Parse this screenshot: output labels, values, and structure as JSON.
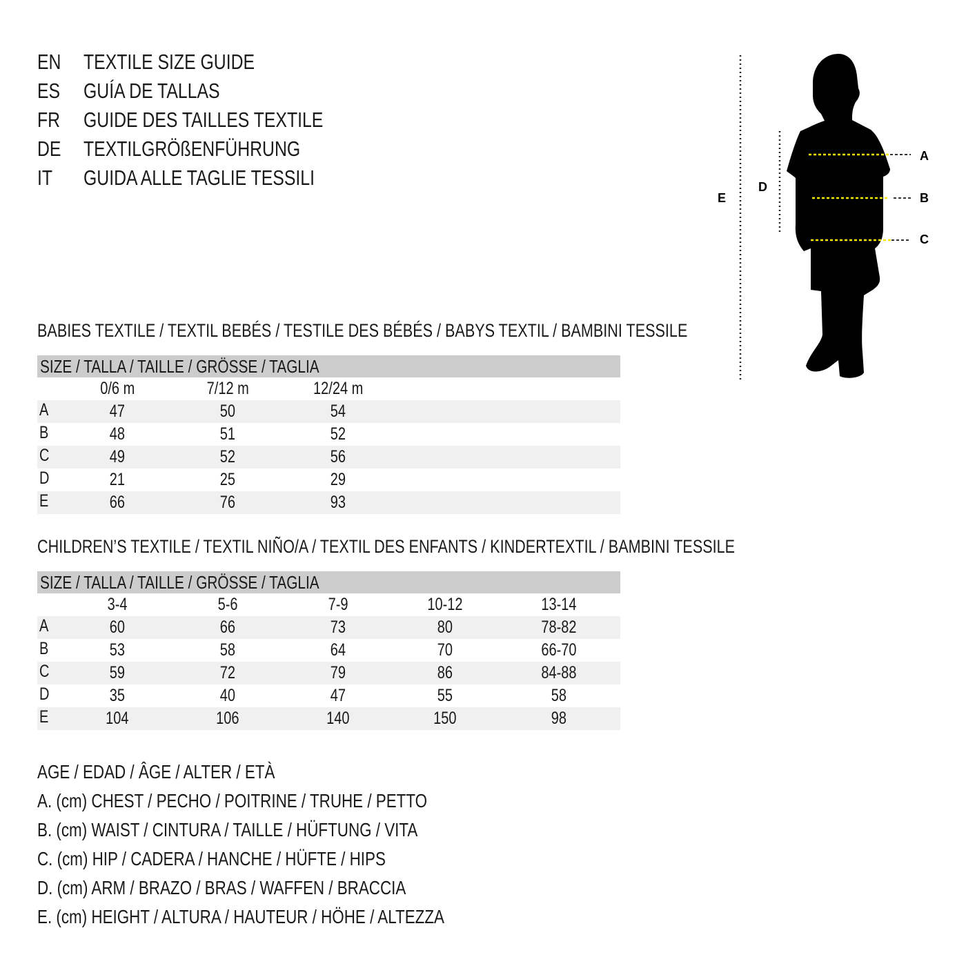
{
  "titles": [
    {
      "code": "EN",
      "text": "TEXTILE SIZE GUIDE"
    },
    {
      "code": "ES",
      "text": "GUÍA DE TALLAS"
    },
    {
      "code": "FR",
      "text": "GUIDE DES TAILLES TEXTILE"
    },
    {
      "code": "DE",
      "text": "TEXTILGRÖßENFÜHRUNG"
    },
    {
      "code": "IT",
      "text": "GUIDA ALLE TAGLIE TESSILI"
    }
  ],
  "figure": {
    "labels": {
      "A": "A",
      "B": "B",
      "C": "C",
      "D": "D",
      "E": "E"
    },
    "measure_line_color": "#f5e600"
  },
  "babies": {
    "title": "BABIES TEXTILE / TEXTIL BEBÉS / TESTILE DES BÉBÉS / BABYS TEXTIL / BAMBINI TESSILE",
    "header": "SIZE / TALLA / TAILLE / GRÖSSE / TAGLIA",
    "columns": [
      "0/6 m",
      "7/12 m",
      "12/24 m"
    ],
    "rows": [
      {
        "label": "A",
        "values": [
          "47",
          "50",
          "54"
        ]
      },
      {
        "label": "B",
        "values": [
          "48",
          "51",
          "52"
        ]
      },
      {
        "label": "C",
        "values": [
          "49",
          "52",
          "56"
        ]
      },
      {
        "label": "D",
        "values": [
          "21",
          "25",
          "29"
        ]
      },
      {
        "label": "E",
        "values": [
          "66",
          "76",
          "93"
        ]
      }
    ]
  },
  "children": {
    "title": "CHILDREN’S TEXTILE / TEXTIL NIÑO/A / TEXTIL DES ENFANTS / KINDERTEXTIL / BAMBINI TESSILE",
    "header": "SIZE / TALLA / TAILLE / GRÖSSE / TAGLIA",
    "columns": [
      "3-4",
      "5-6",
      "7-9",
      "10-12",
      "13-14"
    ],
    "rows": [
      {
        "label": "A",
        "values": [
          "60",
          "66",
          "73",
          "80",
          "78-82"
        ]
      },
      {
        "label": "B",
        "values": [
          "53",
          "58",
          "64",
          "70",
          "66-70"
        ]
      },
      {
        "label": "C",
        "values": [
          "59",
          "72",
          "79",
          "86",
          "84-88"
        ]
      },
      {
        "label": "D",
        "values": [
          "35",
          "40",
          "47",
          "55",
          "58"
        ]
      },
      {
        "label": "E",
        "values": [
          "104",
          "106",
          "140",
          "150",
          "98"
        ]
      }
    ]
  },
  "legend": [
    "AGE / EDAD / ÂGE / ALTER / ETÀ",
    "A. (cm) CHEST / PECHO / POITRINE / TRUHE / PETTO",
    "B. (cm) WAIST / CINTURA / TAILLE / HÜFTUNG / VITA",
    "C. (cm) HIP / CADERA / HANCHE / HÜFTE / HIPS",
    "D. (cm) ARM / BRAZO / BRAS / WAFFEN / BRACCIA",
    "E. (cm) HEIGHT / ALTURA / HAUTEUR / HÖHE / ALTEZZA"
  ]
}
